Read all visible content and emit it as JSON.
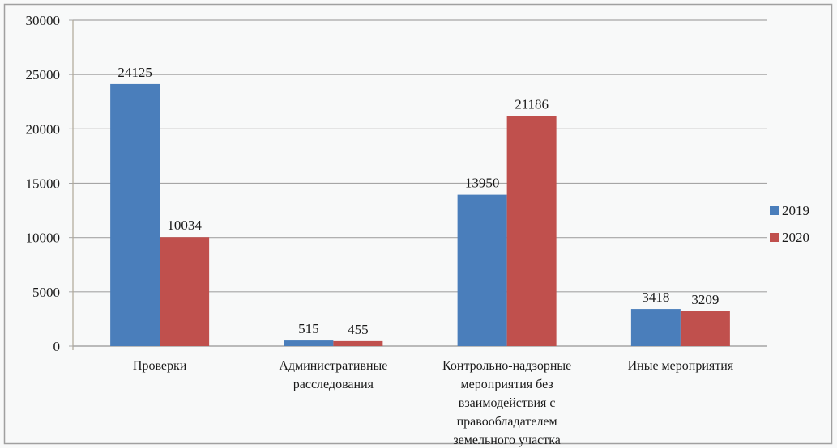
{
  "chart_data": {
    "type": "bar",
    "categories": [
      [
        "Проверки"
      ],
      [
        "Административные",
        "расследования"
      ],
      [
        "Контрольно-надзорные",
        "мероприятия без",
        "взаимодействия с",
        "правообладателем",
        "земельного участка"
      ],
      [
        "Иные мероприятия"
      ]
    ],
    "series": [
      {
        "name": "2019",
        "values": [
          24125,
          515,
          13950,
          3418
        ],
        "color": "#4a7ebb"
      },
      {
        "name": "2020",
        "values": [
          10034,
          455,
          21186,
          3209
        ],
        "color": "#c0504d"
      }
    ],
    "ylim": [
      0,
      30000
    ],
    "yticks": [
      "0",
      "5000",
      "10000",
      "15000",
      "20000",
      "25000",
      "30000"
    ],
    "grid": true,
    "legend": "right",
    "data_labels": true
  }
}
